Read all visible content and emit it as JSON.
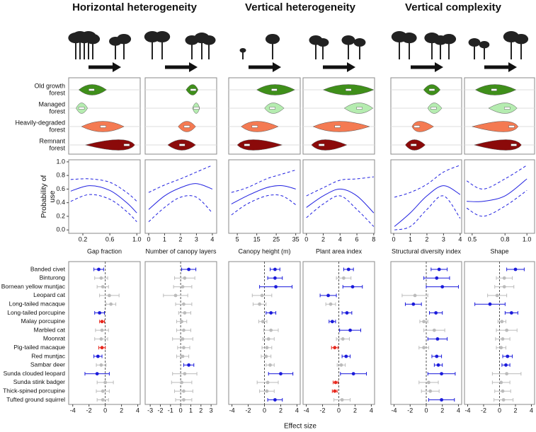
{
  "headings": [
    "Horizontal heterogeneity",
    "Vertical heterogeneity",
    "Vertical complexity"
  ],
  "forest_types": [
    [
      "Old growth",
      "forest"
    ],
    [
      "Managed",
      "forest"
    ],
    [
      "Heavily-degraded",
      "forest"
    ],
    [
      "Remnant",
      "forest"
    ]
  ],
  "species": [
    "Banded civet",
    "Binturong",
    "Bornean yellow muntjac",
    "Leopard cat",
    "Long-tailed macaque",
    "Long-tailed porcupine",
    "Malay porcupine",
    "Marbled cat",
    "Moonrat",
    "Pig-tailed macaque",
    "Red muntjac",
    "Sambar deer",
    "Sunda clouded leopard",
    "Sunda stink badger",
    "Thick-spined porcupine",
    "Tufted ground squirrel"
  ],
  "x_label": "Effect size",
  "chart_data": [
    {
      "type": "violin",
      "xlim": [
        -0.01,
        1.05
      ],
      "series": [
        {
          "color": "#3f8f1a",
          "range": [
            0.14,
            0.55
          ],
          "median": 0.33
        },
        {
          "color": "#b5ecb0",
          "range": [
            0.1,
            0.27
          ],
          "median": 0.18
        },
        {
          "color": "#f47a52",
          "range": [
            0.18,
            0.81
          ],
          "median": 0.5
        },
        {
          "color": "#8b0a0a",
          "range": [
            0.24,
            0.97
          ],
          "median": 0.85
        }
      ]
    },
    {
      "type": "violin",
      "xlim": [
        -0.22,
        4.27
      ],
      "series": [
        {
          "color": "#3f8f1a",
          "range": [
            2.35,
            3.1
          ],
          "median": 2.8
        },
        {
          "color": "#b5ecb0",
          "range": [
            2.75,
            3.2
          ],
          "median": 3.0
        },
        {
          "color": "#f47a52",
          "range": [
            1.85,
            2.95
          ],
          "median": 2.4
        },
        {
          "color": "#8b0a0a",
          "range": [
            1.2,
            2.95
          ],
          "median": 2.1
        }
      ]
    },
    {
      "type": "violin",
      "xlim": [
        0.6,
        37.3
      ],
      "series": [
        {
          "color": "#3f8f1a",
          "range": [
            15,
            34.5
          ],
          "median": 24
        },
        {
          "color": "#b5ecb0",
          "range": [
            19,
            29
          ],
          "median": 23
        },
        {
          "color": "#f47a52",
          "range": [
            7,
            26
          ],
          "median": 14
        },
        {
          "color": "#8b0a0a",
          "range": [
            5,
            28
          ],
          "median": 10
        }
      ]
    },
    {
      "type": "violin",
      "xlim": [
        -0.4,
        8.1
      ],
      "series": [
        {
          "color": "#3f8f1a",
          "range": [
            2.0,
            8.0
          ],
          "median": 5.0
        },
        {
          "color": "#b5ecb0",
          "range": [
            4.5,
            7.9
          ],
          "median": 6.3
        },
        {
          "color": "#f47a52",
          "range": [
            0.8,
            7.5
          ],
          "median": 3.7
        },
        {
          "color": "#8b0a0a",
          "range": [
            0.6,
            4.8
          ],
          "median": 1.8
        }
      ]
    },
    {
      "type": "violin",
      "xlim": [
        -0.17,
        4.09
      ],
      "series": [
        {
          "color": "#3f8f1a",
          "range": [
            1.8,
            2.8
          ],
          "median": 2.3
        },
        {
          "color": "#b5ecb0",
          "range": [
            2.05,
            2.9
          ],
          "median": 2.4
        },
        {
          "color": "#f47a52",
          "range": [
            1.1,
            2.4
          ],
          "median": 1.4
        },
        {
          "color": "#8b0a0a",
          "range": [
            0.7,
            1.9
          ],
          "median": 1.2
        }
      ]
    },
    {
      "type": "violin",
      "xlim": [
        0.43,
        1.07
      ],
      "series": [
        {
          "color": "#3f8f1a",
          "range": [
            0.53,
            0.9
          ],
          "median": 0.7
        },
        {
          "color": "#b5ecb0",
          "range": [
            0.65,
            0.91
          ],
          "median": 0.82
        },
        {
          "color": "#f47a52",
          "range": [
            0.5,
            0.92
          ],
          "median": 0.86
        },
        {
          "color": "#8b0a0a",
          "range": [
            0.52,
            0.95
          ],
          "median": 0.88
        }
      ]
    },
    {
      "type": "line",
      "xlabel": "Gap fraction",
      "ylabel": [
        "Probability of",
        "use"
      ],
      "xlim": [
        -0.01,
        1.05
      ],
      "xticks": [
        0.2,
        0.6,
        {
          "value": 1,
          "label": "1.0"
        }
      ],
      "ylim": [
        -0.05,
        1.03
      ],
      "yticks": [
        {
          "value": 0,
          "label": "0.0"
        },
        0.2,
        0.4,
        0.6,
        0.8,
        {
          "value": 1,
          "label": "1.0"
        }
      ],
      "x": [
        0.02,
        0.3,
        0.6,
        0.85,
        1.0
      ],
      "series": [
        {
          "color": "#2020e0",
          "style": "solid",
          "values": [
            0.57,
            0.65,
            0.58,
            0.4,
            0.25
          ]
        },
        {
          "color": "#2020e0",
          "style": "dashed",
          "values": [
            0.74,
            0.75,
            0.7,
            0.55,
            0.42
          ]
        },
        {
          "color": "#2020e0",
          "style": "dashed",
          "values": [
            0.42,
            0.52,
            0.45,
            0.27,
            0.12
          ]
        }
      ]
    },
    {
      "type": "line",
      "xlabel": "Number of canopy layers",
      "xlim": [
        -0.22,
        4.27
      ],
      "xticks": [
        0,
        1,
        2,
        3,
        4
      ],
      "ylim": [
        -0.05,
        1.03
      ],
      "x": [
        0,
        1,
        2,
        3,
        4
      ],
      "series": [
        {
          "color": "#2020e0",
          "style": "solid",
          "values": [
            0.3,
            0.5,
            0.62,
            0.68,
            0.6
          ]
        },
        {
          "color": "#2020e0",
          "style": "dashed",
          "values": [
            0.55,
            0.66,
            0.75,
            0.85,
            0.95
          ]
        },
        {
          "color": "#2020e0",
          "style": "dashed",
          "values": [
            0.12,
            0.33,
            0.48,
            0.48,
            0.25
          ]
        }
      ]
    },
    {
      "type": "line",
      "xlabel": "Canopy height (m)",
      "xlim": [
        0.6,
        37.3
      ],
      "xticks": [
        5,
        15,
        25,
        35
      ],
      "ylim": [
        -0.05,
        1.03
      ],
      "x": [
        2,
        10,
        20,
        28,
        35
      ],
      "series": [
        {
          "color": "#2020e0",
          "style": "solid",
          "values": [
            0.38,
            0.5,
            0.62,
            0.65,
            0.6
          ]
        },
        {
          "color": "#2020e0",
          "style": "dashed",
          "values": [
            0.55,
            0.62,
            0.75,
            0.82,
            0.88
          ]
        },
        {
          "color": "#2020e0",
          "style": "dashed",
          "values": [
            0.22,
            0.38,
            0.5,
            0.5,
            0.37
          ]
        }
      ]
    },
    {
      "type": "line",
      "xlabel": "Plant area index",
      "xlim": [
        -0.4,
        8.1
      ],
      "xticks": [
        0,
        2,
        4,
        6,
        8
      ],
      "ylim": [
        -0.05,
        1.03
      ],
      "x": [
        0,
        2,
        4,
        6,
        8
      ],
      "series": [
        {
          "color": "#2020e0",
          "style": "solid",
          "values": [
            0.33,
            0.5,
            0.6,
            0.5,
            0.25
          ]
        },
        {
          "color": "#2020e0",
          "style": "dashed",
          "values": [
            0.5,
            0.62,
            0.73,
            0.75,
            0.78
          ]
        },
        {
          "color": "#2020e0",
          "style": "dashed",
          "values": [
            0.18,
            0.38,
            0.5,
            0.3,
            0.05
          ]
        }
      ]
    },
    {
      "type": "line",
      "xlabel": "Structural diversity index",
      "xlim": [
        -0.17,
        4.09
      ],
      "xticks": [
        0,
        1,
        2,
        3,
        4
      ],
      "ylim": [
        -0.05,
        1.03
      ],
      "x": [
        0.05,
        1,
        2,
        3,
        4
      ],
      "series": [
        {
          "color": "#2020e0",
          "style": "solid",
          "values": [
            0.05,
            0.25,
            0.5,
            0.65,
            0.52
          ]
        },
        {
          "color": "#2020e0",
          "style": "dashed",
          "values": [
            0.48,
            0.55,
            0.67,
            0.85,
            0.95
          ]
        },
        {
          "color": "#2020e0",
          "style": "dashed",
          "values": [
            0,
            0.05,
            0.3,
            0.5,
            0.17
          ]
        }
      ]
    },
    {
      "type": "line",
      "xlabel": "Shape",
      "xlim": [
        0.43,
        1.07
      ],
      "xticks": [
        0.5,
        0.8,
        {
          "value": 1,
          "label": "1.0"
        }
      ],
      "ylim": [
        -0.05,
        1.03
      ],
      "x": [
        0.45,
        0.6,
        0.8,
        1.0
      ],
      "series": [
        {
          "color": "#2020e0",
          "style": "solid",
          "values": [
            0.42,
            0.42,
            0.5,
            0.75
          ]
        },
        {
          "color": "#2020e0",
          "style": "dashed",
          "values": [
            0.72,
            0.6,
            0.75,
            0.95
          ]
        },
        {
          "color": "#2020e0",
          "style": "dashed",
          "values": [
            0.32,
            0.2,
            0.35,
            0.58
          ]
        }
      ]
    },
    {
      "type": "forest",
      "xlim": [
        -4.5,
        4.3
      ],
      "xticks": [
        -4,
        -2,
        0,
        2,
        4
      ],
      "values": [
        -0.8,
        -0.5,
        -0.3,
        0.5,
        0.7,
        -0.7,
        -0.4,
        -0.4,
        -0.5,
        -0.4,
        -0.9,
        -0.5,
        -1.0,
        0.0,
        -0.3,
        -0.3
      ],
      "errors": [
        0.6,
        0.8,
        0.7,
        1.2,
        0.6,
        0.6,
        0.3,
        0.8,
        0.8,
        0.4,
        0.5,
        0.6,
        1.5,
        1.0,
        0.8,
        0.7
      ],
      "colors": [
        "#1a1adb",
        "#bbbbbb",
        "#bbbbbb",
        "#bbbbbb",
        "#bbbbbb",
        "#1a1adb",
        "#e8281e",
        "#bbbbbb",
        "#bbbbbb",
        "#e8281e",
        "#1a1adb",
        "#bbbbbb",
        "#1a1adb",
        "#bbbbbb",
        "#bbbbbb",
        "#bbbbbb"
      ]
    },
    {
      "type": "forest",
      "xlim": [
        -3.5,
        3.55
      ],
      "xticks": [
        -3,
        -2,
        -1,
        0,
        1,
        2,
        3
      ],
      "values": [
        0.8,
        0.4,
        0.2,
        -0.5,
        0.3,
        0.4,
        0.1,
        0.3,
        0.2,
        0.3,
        0.2,
        0.8,
        0.4,
        0.1,
        0.3,
        0.3
      ],
      "errors": [
        0.7,
        1.0,
        0.9,
        1.2,
        0.8,
        0.6,
        0.5,
        0.7,
        1.0,
        0.6,
        0.6,
        0.5,
        1.2,
        1.0,
        0.9,
        0.8
      ],
      "colors": [
        "#1a1adb",
        "#bbbbbb",
        "#bbbbbb",
        "#bbbbbb",
        "#bbbbbb",
        "#bbbbbb",
        "#bbbbbb",
        "#bbbbbb",
        "#bbbbbb",
        "#bbbbbb",
        "#bbbbbb",
        "#1a1adb",
        "#bbbbbb",
        "#bbbbbb",
        "#bbbbbb",
        "#bbbbbb"
      ]
    },
    {
      "type": "forest",
      "xlim": [
        -4.4,
        4.4
      ],
      "xticks": [
        -4,
        -2,
        0,
        2,
        4
      ],
      "values": [
        1.3,
        1.3,
        1.4,
        -0.3,
        -0.6,
        0.8,
        -0.2,
        0.8,
        0.5,
        0.3,
        0.2,
        0.7,
        2.0,
        0.4,
        0.3,
        1.3
      ],
      "errors": [
        0.6,
        0.9,
        2.0,
        1.2,
        0.8,
        0.6,
        0.5,
        0.9,
        0.7,
        0.6,
        0.6,
        0.5,
        1.5,
        1.3,
        0.9,
        0.9
      ],
      "colors": [
        "#1a1adb",
        "#1a1adb",
        "#1a1adb",
        "#bbbbbb",
        "#bbbbbb",
        "#1a1adb",
        "#bbbbbb",
        "#bbbbbb",
        "#bbbbbb",
        "#bbbbbb",
        "#bbbbbb",
        "#bbbbbb",
        "#1a1adb",
        "#bbbbbb",
        "#bbbbbb",
        "#1a1adb"
      ]
    },
    {
      "type": "forest",
      "xlim": [
        -4.4,
        4.4
      ],
      "xticks": [
        -4,
        -2,
        0,
        2,
        4
      ],
      "values": [
        1.2,
        0.6,
        1.7,
        -1.3,
        -1.0,
        1.0,
        -0.8,
        1.4,
        0.5,
        -0.5,
        0.9,
        0.3,
        1.8,
        -0.4,
        -0.5,
        0.4
      ],
      "errors": [
        0.6,
        0.9,
        1.2,
        1.0,
        0.6,
        0.6,
        0.4,
        1.3,
        0.8,
        0.4,
        0.5,
        0.5,
        1.6,
        0.3,
        0.3,
        1.0
      ],
      "colors": [
        "#1a1adb",
        "#bbbbbb",
        "#1a1adb",
        "#1a1adb",
        "#bbbbbb",
        "#1a1adb",
        "#1a1adb",
        "#1a1adb",
        "#bbbbbb",
        "#e8281e",
        "#1a1adb",
        "#bbbbbb",
        "#1a1adb",
        "#e8281e",
        "#e8281e",
        "#bbbbbb"
      ]
    },
    {
      "type": "forest",
      "xlim": [
        -4.4,
        4.4
      ],
      "xticks": [
        -4,
        -2,
        0,
        2,
        4
      ],
      "values": [
        1.6,
        1.3,
        2.0,
        -1.4,
        -1.6,
        1.2,
        -0.3,
        1.0,
        1.4,
        -0.3,
        1.3,
        1.5,
        1.9,
        0.3,
        0.5,
        1.9
      ],
      "errors": [
        1.0,
        1.6,
        2.0,
        1.6,
        1.0,
        0.8,
        0.5,
        1.3,
        1.2,
        0.6,
        0.6,
        0.5,
        1.7,
        1.2,
        1.1,
        1.6
      ],
      "colors": [
        "#1a1adb",
        "#1a1adb",
        "#1a1adb",
        "#bbbbbb",
        "#1a1adb",
        "#1a1adb",
        "#bbbbbb",
        "#bbbbbb",
        "#1a1adb",
        "#bbbbbb",
        "#1a1adb",
        "#1a1adb",
        "#1a1adb",
        "#bbbbbb",
        "#bbbbbb",
        "#1a1adb"
      ]
    },
    {
      "type": "forest",
      "xlim": [
        -4.4,
        4.4
      ],
      "xticks": [
        -4,
        -2,
        0,
        2,
        4
      ],
      "values": [
        2.0,
        0.6,
        0.6,
        -0.3,
        -1.2,
        1.5,
        0.3,
        0.9,
        0.4,
        0.2,
        1.0,
        0.8,
        0.9,
        0.2,
        0.4,
        0.5
      ],
      "errors": [
        1.1,
        1.0,
        1.2,
        1.2,
        1.9,
        0.8,
        0.5,
        1.3,
        0.9,
        0.6,
        0.6,
        0.5,
        1.8,
        1.1,
        1.0,
        1.2
      ],
      "colors": [
        "#1a1adb",
        "#bbbbbb",
        "#bbbbbb",
        "#bbbbbb",
        "#1a1adb",
        "#1a1adb",
        "#bbbbbb",
        "#bbbbbb",
        "#bbbbbb",
        "#bbbbbb",
        "#1a1adb",
        "#1a1adb",
        "#bbbbbb",
        "#bbbbbb",
        "#bbbbbb",
        "#bbbbbb"
      ]
    }
  ]
}
